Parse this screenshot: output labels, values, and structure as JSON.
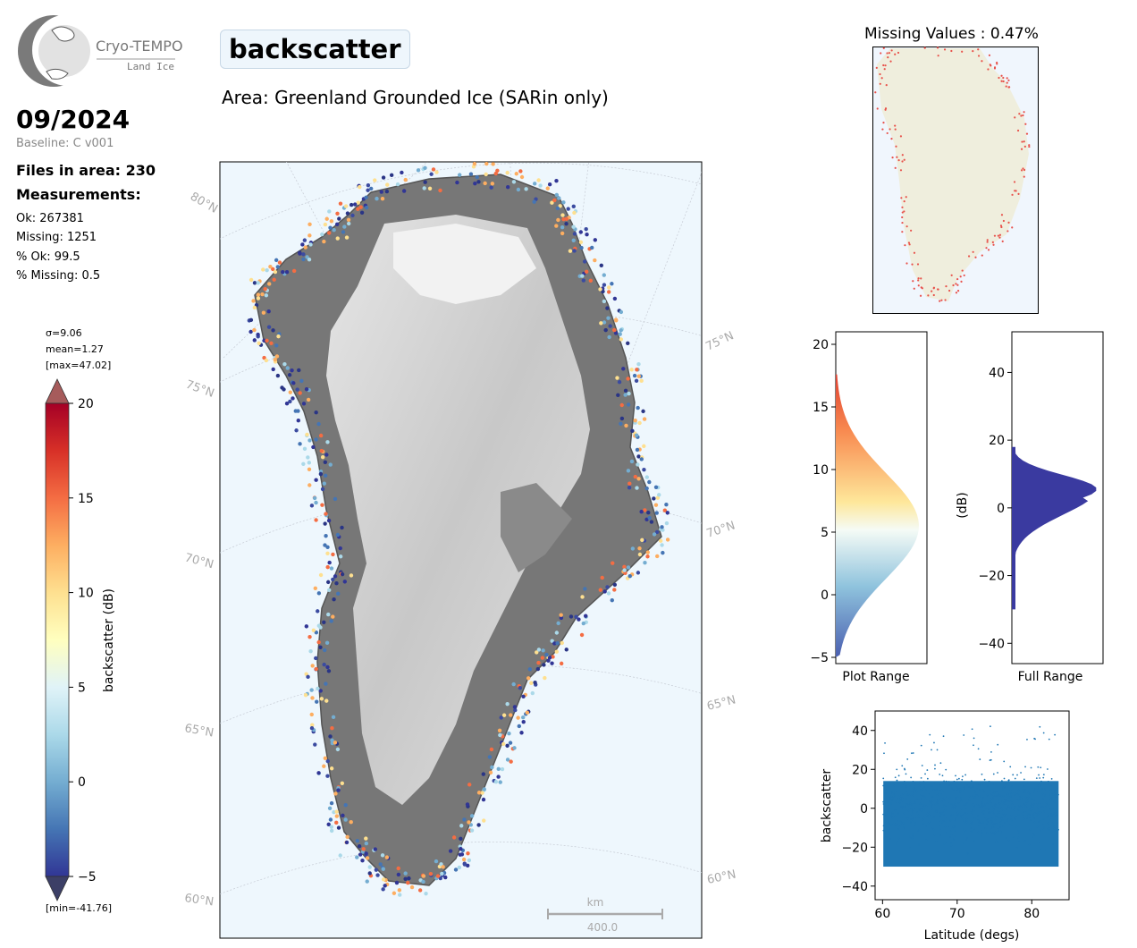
{
  "logo": {
    "name": "Cryo-TEMPO",
    "sub": "Land Ice"
  },
  "title": "backscatter",
  "area": "Area: Greenland Grounded Ice (SARin only)",
  "date": "09/2024",
  "baseline": "Baseline: C v001",
  "files": "Files in area: 230",
  "measurements_label": "Measurements:",
  "stats": {
    "ok": "Ok: 267381",
    "missing": "Missing: 1251",
    "pct_ok": "% Ok: 99.5",
    "pct_missing": "% Missing: 0.5"
  },
  "colorbar": {
    "sigma": "σ=9.06",
    "mean": "mean=1.27",
    "max": "[max=47.02]",
    "min": "[min=-41.76]",
    "label": "backscatter (dB)",
    "vmin": -5,
    "vmax": 20,
    "ticks": [
      "20",
      "15",
      "10",
      "5",
      "0",
      "−5"
    ]
  },
  "map": {
    "lat_labels_left": [
      "80°N",
      "75°N",
      "70°N",
      "65°N",
      "60°N"
    ],
    "lat_labels_right": [
      "75°N",
      "70°N",
      "65°N",
      "60°N"
    ],
    "scale_unit": "km",
    "scale_value": "400.0"
  },
  "missing": {
    "title": "Missing Values : 0.47%"
  },
  "chart_data": [
    {
      "type": "bar",
      "name": "Plot Range histogram",
      "xlabel": "Plot Range",
      "ylim": [
        -5.5,
        21
      ],
      "yticks": [
        "20",
        "15",
        "10",
        "5",
        "0",
        "−5"
      ],
      "orientation": "horizontal"
    },
    {
      "type": "bar",
      "name": "Full Range histogram",
      "xlabel": "Full Range",
      "ylabel": "(dB)",
      "ylim": [
        -46,
        52
      ],
      "yticks": [
        "40",
        "20",
        "0",
        "−20",
        "−40"
      ],
      "orientation": "horizontal",
      "color": "#3a3aa0"
    },
    {
      "type": "scatter",
      "xlabel": "Latitude (degs)",
      "ylabel": "backscatter",
      "xlim": [
        59,
        85
      ],
      "ylim": [
        -47,
        50
      ],
      "xticks": [
        "60",
        "70",
        "80"
      ],
      "yticks": [
        "40",
        "20",
        "0",
        "−20",
        "−40"
      ],
      "color": "#1f77b4"
    }
  ]
}
